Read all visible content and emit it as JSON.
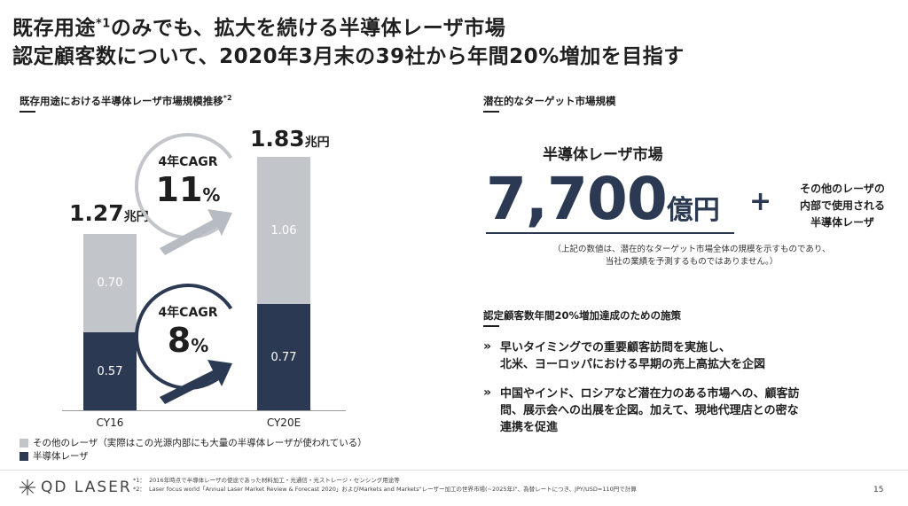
{
  "header": {
    "title_line1_a": "既存用途",
    "title_line1_sup": "*1",
    "title_line1_b": "のみでも、拡大を続ける半導体レーザ市場",
    "title_line2": "認定顧客数について、2020年3月末の39社から年間20%増加を目指す"
  },
  "left": {
    "heading": "既存用途における半導体レーザ市場規模推移",
    "heading_sup": "*2"
  },
  "chart_data": {
    "type": "bar",
    "stacked": true,
    "categories": [
      "CY16",
      "CY20E"
    ],
    "series": [
      {
        "name": "半導体レーザ",
        "values": [
          0.57,
          0.77
        ],
        "color": "#2b3a52"
      },
      {
        "name": "その他のレーザ（実際はこの光源内部にも大量の半導体レーザが使われている）",
        "values": [
          0.7,
          1.06
        ],
        "color": "#c2c6cb"
      }
    ],
    "totals": [
      "1.27",
      "1.83"
    ],
    "total_unit": "兆円",
    "segment_labels": {
      "CY16": {
        "bottom": "0.57",
        "top": "0.70"
      },
      "CY20E": {
        "bottom": "0.77",
        "top": "1.06"
      }
    },
    "annotations": [
      {
        "label": "4年CAGR",
        "value": "11",
        "unit": "%"
      },
      {
        "label": "4年CAGR",
        "value": "8",
        "unit": "%"
      }
    ],
    "legend_placement": "bottom-left"
  },
  "right": {
    "heading1": "潜在的なターゲット市場規模",
    "market_label": "半導体レーザ市場",
    "market_value": "7,700",
    "market_unit": "億円",
    "plus": "+",
    "other_line1": "その他のレーザの",
    "other_line2": "内部で使用される",
    "other_line3": "半導体レーザ",
    "note_line1": "（上記の数値は、潜在的なターゲット市場全体の規模を示すものであり、",
    "note_line2": "当社の業績を予測するものではありません。）",
    "heading2": "認定顧客数年間20%増加達成のための施策",
    "chevron": "»",
    "item1_line1": "早いタイミングでの重要顧客訪問を実施し、",
    "item1_line2": "北米、ヨーロッパにおける早期の売上高拡大を企図",
    "item2_line1": "中国やインド、ロシアなど潜在力のある市場への、顧客訪",
    "item2_line2": "問、展示会への出展を企図。加えて、現地代理店との密な",
    "item2_line3": "連携を促進"
  },
  "footer": {
    "note1_mark": "*1：",
    "note1": "2016年時点で半導体レーザの使途であった材料加工・光通信・光ストレージ・センシング用途等",
    "note2_mark": "*2：",
    "note2": "Laser focus world「Annual Laser Market Review & Forecast 2020」およびMarkets and Markets\"レーザー加工の世界市場(~2025年)\"、為替レートにつき、JPY/USD=110円で計算",
    "logo_text": "QD LASER",
    "page_number": "15"
  }
}
